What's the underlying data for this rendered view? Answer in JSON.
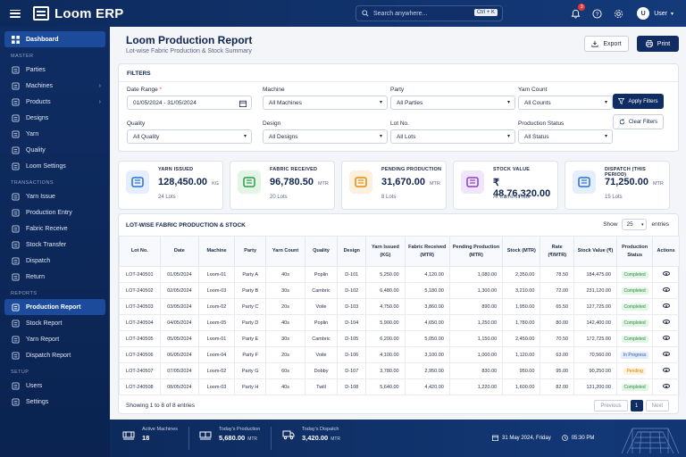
{
  "app": {
    "title": "Loom ERP"
  },
  "search": {
    "placeholder": "Search anywhere...",
    "shortcut": "Ctrl + K"
  },
  "header": {
    "notifications": "3",
    "user_initial": "U",
    "user_name": "User"
  },
  "sidebar": {
    "dashboard": "Dashboard",
    "sections": [
      {
        "title": "MASTER",
        "items": [
          {
            "label": "Parties",
            "icon": "users-icon"
          },
          {
            "label": "Machines",
            "icon": "machine-icon",
            "arrow": true
          },
          {
            "label": "Products",
            "icon": "box-icon",
            "arrow": true
          },
          {
            "label": "Designs",
            "icon": "design-icon"
          },
          {
            "label": "Yarn",
            "icon": "yarn-icon"
          },
          {
            "label": "Quality",
            "icon": "quality-icon"
          },
          {
            "label": "Loom Settings",
            "icon": "settings-icon"
          }
        ]
      },
      {
        "title": "TRANSACTIONS",
        "items": [
          {
            "label": "Yarn Issue",
            "icon": "yarn-issue-icon"
          },
          {
            "label": "Production Entry",
            "icon": "production-icon"
          },
          {
            "label": "Fabric Receive",
            "icon": "fabric-icon"
          },
          {
            "label": "Stock Transfer",
            "icon": "transfer-icon"
          },
          {
            "label": "Dispatch",
            "icon": "truck-icon"
          },
          {
            "label": "Return",
            "icon": "return-icon"
          }
        ]
      },
      {
        "title": "REPORTS",
        "items": [
          {
            "label": "Production Report",
            "icon": "report-icon",
            "active": true
          },
          {
            "label": "Stock Report",
            "icon": "stock-report-icon"
          },
          {
            "label": "Yarn Report",
            "icon": "yarn-report-icon"
          },
          {
            "label": "Dispatch Report",
            "icon": "dispatch-report-icon"
          }
        ]
      },
      {
        "title": "SETUP",
        "items": [
          {
            "label": "Users",
            "icon": "user-icon"
          },
          {
            "label": "Settings",
            "icon": "gear-icon"
          }
        ]
      }
    ]
  },
  "page": {
    "title": "Loom Production Report",
    "subtitle": "Lot-wise Fabric Production & Stock Summary",
    "export_label": "Export",
    "print_label": "Print"
  },
  "filters": {
    "title": "FILTERS",
    "date_range": {
      "label": "Date Range",
      "value": "01/05/2024 - 31/05/2024"
    },
    "machine": {
      "label": "Machine",
      "value": "All Machines"
    },
    "party": {
      "label": "Party",
      "value": "All Parties"
    },
    "yarn_count": {
      "label": "Yarn Count",
      "value": "All Counts"
    },
    "quality": {
      "label": "Quality",
      "value": "All Quality"
    },
    "design": {
      "label": "Design",
      "value": "All Designs"
    },
    "lot_no": {
      "label": "Lot No.",
      "value": "All Lots"
    },
    "status": {
      "label": "Production Status",
      "value": "All Status"
    },
    "apply_label": "Apply Filters",
    "clear_label": "Clear Filters"
  },
  "cards": [
    {
      "title": "YARN ISSUED",
      "value": "128,450.00",
      "unit": "KG",
      "sub": "24 Lots",
      "color": "#2a6fd6",
      "bg": "#e4eefc",
      "icon": "yarn-spool-icon"
    },
    {
      "title": "FABRIC RECEIVED",
      "value": "96,780.50",
      "unit": "MTR",
      "sub": "20 Lots",
      "color": "#2e9b4a",
      "bg": "#e2f5e6",
      "icon": "fabric-roll-icon"
    },
    {
      "title": "PENDING PRODUCTION",
      "value": "31,670.00",
      "unit": "MTR",
      "sub": "8 Lots",
      "color": "#e58a12",
      "bg": "#fdf0dc",
      "icon": "loom-icon"
    },
    {
      "title": "STOCK VALUE",
      "value": "₹ 48,76,320.00",
      "unit": "",
      "sub": "At Current Rate",
      "color": "#8b3fc4",
      "bg": "#f1e5fb",
      "icon": "coins-icon"
    },
    {
      "title": "DISPATCH (THIS PERIOD)",
      "value": "71,250.00",
      "unit": "MTR",
      "sub": "15 Lots",
      "color": "#2a6fd6",
      "bg": "#e4eefc",
      "icon": "truck-icon"
    }
  ],
  "table": {
    "title": "LOT-WISE FABRIC PRODUCTION & STOCK",
    "show_label": "Show",
    "page_size": "25",
    "entries_label": "entries",
    "columns": [
      "Lot No.",
      "Date",
      "Machine",
      "Party",
      "Yarn Count",
      "Quality",
      "Design",
      "Yarn Issued (KG)",
      "Fabric Received (MTR)",
      "Pending Production (MTR)",
      "Stock (MTR)",
      "Rate (₹/MTR)",
      "Stock Value (₹)",
      "Production Status",
      "Actions"
    ],
    "rows": [
      [
        "LOT-240501",
        "01/05/2024",
        "Loom-01",
        "Party A",
        "40s",
        "Poplin",
        "D-101",
        "5,250.00",
        "4,120.00",
        "1,080.00",
        "2,350.00",
        "78.50",
        "184,475.00",
        "Completed"
      ],
      [
        "LOT-240502",
        "02/05/2024",
        "Loom-03",
        "Party B",
        "30s",
        "Cambric",
        "D-102",
        "6,480.00",
        "5,180.00",
        "1,300.00",
        "3,210.00",
        "72.00",
        "231,120.00",
        "Completed"
      ],
      [
        "LOT-240503",
        "03/05/2024",
        "Loom-02",
        "Party C",
        "20s",
        "Voile",
        "D-103",
        "4,750.00",
        "3,860.00",
        "890.00",
        "1,950.00",
        "65.50",
        "127,725.00",
        "Completed"
      ],
      [
        "LOT-240504",
        "04/05/2024",
        "Loom-05",
        "Party D",
        "40s",
        "Poplin",
        "D-104",
        "5,900.00",
        "4,650.00",
        "1,250.00",
        "1,780.00",
        "80.00",
        "142,400.00",
        "Completed"
      ],
      [
        "LOT-240505",
        "05/05/2024",
        "Loom-01",
        "Party E",
        "30s",
        "Cambric",
        "D-105",
        "6,200.00",
        "5,050.00",
        "1,150.00",
        "2,450.00",
        "70.50",
        "172,725.00",
        "Completed"
      ],
      [
        "LOT-240506",
        "06/05/2024",
        "Loom-04",
        "Party F",
        "20s",
        "Voile",
        "D-106",
        "4,100.00",
        "3,100.00",
        "1,000.00",
        "1,120.00",
        "63.00",
        "70,560.00",
        "In Progress"
      ],
      [
        "LOT-240507",
        "07/05/2024",
        "Loom-02",
        "Party G",
        "60s",
        "Dobby",
        "D-107",
        "3,780.00",
        "2,950.00",
        "830.00",
        "950.00",
        "95.00",
        "90,250.00",
        "Pending"
      ],
      [
        "LOT-240508",
        "08/05/2024",
        "Loom-03",
        "Party H",
        "40s",
        "Twill",
        "D-108",
        "5,640.00",
        "4,420.00",
        "1,220.00",
        "1,600.00",
        "82.00",
        "131,200.00",
        "Completed"
      ]
    ],
    "footer": "Showing 1 to 8 of 8 entries",
    "pager": {
      "prev": "Previous",
      "current": "1",
      "next": "Next"
    }
  },
  "footer": {
    "active_machines": {
      "label": "Active Machines",
      "value": "18"
    },
    "todays_production": {
      "label": "Today's Production",
      "value": "5,680.00",
      "unit": "MTR"
    },
    "todays_dispatch": {
      "label": "Today's Dispatch",
      "value": "3,420.00",
      "unit": "MTR"
    },
    "date": "31 May 2024, Friday",
    "time": "05:30 PM"
  }
}
